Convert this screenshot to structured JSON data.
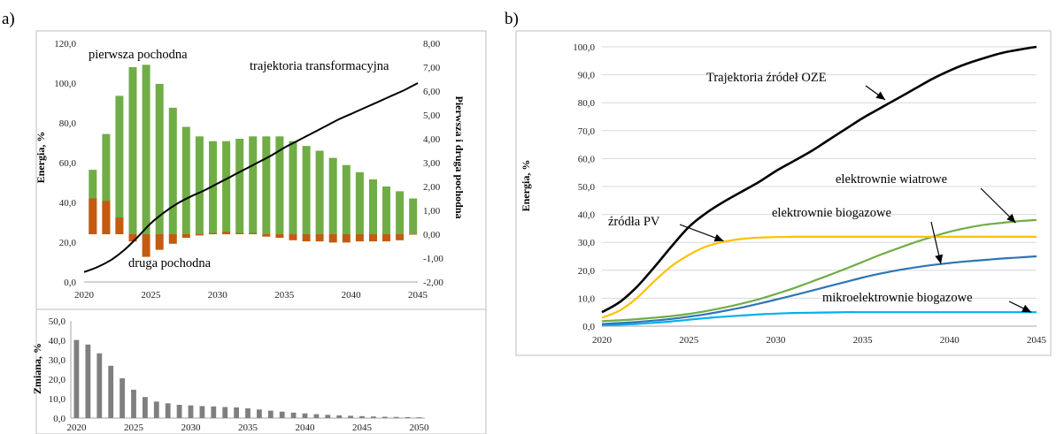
{
  "panels": {
    "a_label": "a)",
    "b_label": "b)"
  },
  "chart_data": [
    {
      "id": "chart-a-top",
      "type": "bar",
      "ylabel": "Energia, %",
      "y2label": "Pierwsza i druga pochodna",
      "xlim": [
        2020,
        2045
      ],
      "ylim": [
        0,
        120
      ],
      "y2lim": [
        -2,
        8
      ],
      "x_ticks": [
        2020,
        2025,
        2030,
        2035,
        2040,
        2045
      ],
      "y_ticks": [
        "0,0",
        "20,0",
        "40,0",
        "60,0",
        "80,0",
        "100,0",
        "120,0"
      ],
      "y2_ticks": [
        "-2,00",
        "-1,00",
        "0,00",
        "1,00",
        "2,00",
        "3,00",
        "4,00",
        "5,00",
        "6,00",
        "7,00",
        "8,00"
      ],
      "annotations": {
        "first": "pierwsza pochodna",
        "second": "druga pochodna",
        "trajectory": "trajektoria transformacyjna"
      },
      "bar_years": [
        2021,
        2022,
        2023,
        2024,
        2025,
        2026,
        2027,
        2028,
        2029,
        2030,
        2031,
        2032,
        2033,
        2034,
        2035,
        2036,
        2037,
        2038,
        2039,
        2040,
        2041,
        2042,
        2043,
        2044,
        2045
      ],
      "series": [
        {
          "name": "pierwsza pochodna",
          "axis": "y2",
          "kind": "bar",
          "color": "#70ad47",
          "values": [
            2.7,
            4.2,
            5.8,
            7.0,
            7.1,
            6.3,
            5.3,
            4.5,
            4.1,
            3.9,
            3.9,
            4.0,
            4.1,
            4.1,
            4.1,
            3.9,
            3.7,
            3.5,
            3.2,
            2.9,
            2.6,
            2.3,
            2.0,
            1.8,
            1.5
          ]
        },
        {
          "name": "druga pochodna",
          "axis": "y2",
          "kind": "bar",
          "color": "#c55a11",
          "values": [
            1.5,
            1.4,
            0.7,
            -0.3,
            -0.95,
            -0.65,
            -0.4,
            -0.15,
            -0.05,
            0.05,
            0.1,
            0.05,
            0.05,
            -0.1,
            -0.15,
            -0.25,
            -0.3,
            -0.3,
            -0.35,
            -0.35,
            -0.3,
            -0.3,
            -0.3,
            -0.25,
            0.0
          ]
        },
        {
          "name": "trajektoria transformacyjna",
          "axis": "y",
          "kind": "line",
          "color": "#000000",
          "x": [
            2020,
            2021,
            2022,
            2023,
            2024,
            2025,
            2026,
            2027,
            2028,
            2029,
            2030,
            2031,
            2032,
            2033,
            2034,
            2035,
            2036,
            2037,
            2038,
            2039,
            2040,
            2041,
            2042,
            2043,
            2044,
            2045
          ],
          "values": [
            5.0,
            7.5,
            11.0,
            16.0,
            22.5,
            29.5,
            35.0,
            39.5,
            43.0,
            46.0,
            49.5,
            53.0,
            56.5,
            60.0,
            63.5,
            67.5,
            71.0,
            74.5,
            78.0,
            81.5,
            84.5,
            87.5,
            90.5,
            93.5,
            96.5,
            100.0
          ]
        }
      ]
    },
    {
      "id": "chart-a-bottom",
      "type": "bar",
      "ylabel": "Zmiana, %",
      "xlim": [
        2019.5,
        2050.5
      ],
      "ylim": [
        0,
        50
      ],
      "x_ticks": [
        2020,
        2025,
        2030,
        2035,
        2040,
        2045,
        2050
      ],
      "y_ticks": [
        "0,0",
        "10,0",
        "20,0",
        "30,0",
        "40,0",
        "50,0"
      ],
      "years": [
        2020,
        2021,
        2022,
        2023,
        2024,
        2025,
        2026,
        2027,
        2028,
        2029,
        2030,
        2031,
        2032,
        2033,
        2034,
        2035,
        2036,
        2037,
        2038,
        2039,
        2040,
        2041,
        2042,
        2043,
        2044,
        2045,
        2046,
        2047,
        2048,
        2049,
        2050
      ],
      "series": [
        {
          "name": "",
          "color": "#7f7f7f",
          "values": [
            40.2,
            37.8,
            33.3,
            26.9,
            20.5,
            14.6,
            10.8,
            8.5,
            7.6,
            6.8,
            6.5,
            6.2,
            6.0,
            5.7,
            5.5,
            5.0,
            4.4,
            3.8,
            3.3,
            2.8,
            2.4,
            2.0,
            1.7,
            1.4,
            1.2,
            1.0,
            0.8,
            0.7,
            0.6,
            0.5,
            0.4
          ]
        }
      ]
    },
    {
      "id": "chart-b",
      "type": "line",
      "ylabel": "Energia, %",
      "xlim": [
        2020,
        2045
      ],
      "ylim": [
        0,
        100
      ],
      "x_ticks": [
        2020,
        2025,
        2030,
        2035,
        2040,
        2045
      ],
      "y_ticks": [
        "0,0",
        "10,0",
        "20,0",
        "30,0",
        "40,0",
        "50,0",
        "60,0",
        "70,0",
        "80,0",
        "90,0",
        "100,0"
      ],
      "grid": true,
      "x": [
        2020,
        2021,
        2022,
        2023,
        2024,
        2025,
        2026,
        2027,
        2028,
        2029,
        2030,
        2031,
        2032,
        2033,
        2034,
        2035,
        2036,
        2037,
        2038,
        2039,
        2040,
        2041,
        2042,
        2043,
        2044,
        2045
      ],
      "series": [
        {
          "name": "Trajektoria źródeł OZE",
          "color": "#000000",
          "values": [
            5.0,
            8.5,
            14.0,
            21.0,
            28.5,
            35.5,
            40.5,
            44.5,
            48.0,
            51.5,
            55.5,
            59.0,
            62.5,
            66.5,
            70.5,
            74.5,
            78.0,
            81.5,
            85.0,
            88.5,
            91.5,
            94.0,
            96.0,
            97.8,
            99.0,
            100.0
          ]
        },
        {
          "name": "źródła PV",
          "color": "#ffc000",
          "values": [
            3.0,
            5.5,
            10.0,
            16.0,
            21.5,
            25.5,
            28.5,
            30.2,
            31.2,
            31.7,
            31.9,
            32.0,
            32.0,
            32.0,
            32.0,
            32.0,
            32.0,
            32.0,
            32.0,
            32.0,
            32.0,
            32.0,
            32.0,
            32.0,
            32.0,
            32.0
          ]
        },
        {
          "name": "elektrownie wiatrowe",
          "color": "#70ad47",
          "values": [
            1.8,
            2.1,
            2.5,
            3.0,
            3.6,
            4.4,
            5.4,
            6.6,
            8.0,
            9.6,
            11.5,
            13.5,
            15.8,
            18.1,
            20.5,
            23.0,
            25.5,
            27.8,
            30.0,
            32.0,
            33.8,
            35.2,
            36.3,
            37.0,
            37.6,
            38.0
          ]
        },
        {
          "name": "elektrownie biogazowe",
          "color": "#2e75b6",
          "values": [
            0.8,
            1.1,
            1.5,
            2.0,
            2.6,
            3.4,
            4.3,
            5.4,
            6.6,
            8.0,
            9.5,
            11.0,
            12.6,
            14.2,
            15.8,
            17.4,
            18.8,
            20.0,
            21.0,
            21.9,
            22.6,
            23.2,
            23.7,
            24.2,
            24.6,
            25.0
          ]
        },
        {
          "name": "mikroelektrownie biogazowe",
          "color": "#00b0f0",
          "values": [
            0.3,
            0.5,
            0.8,
            1.2,
            1.7,
            2.3,
            2.9,
            3.4,
            3.8,
            4.2,
            4.5,
            4.7,
            4.8,
            4.9,
            5.0,
            5.0,
            5.0,
            5.0,
            5.0,
            5.0,
            5.0,
            5.0,
            5.0,
            5.0,
            5.0,
            5.0
          ]
        }
      ]
    }
  ]
}
